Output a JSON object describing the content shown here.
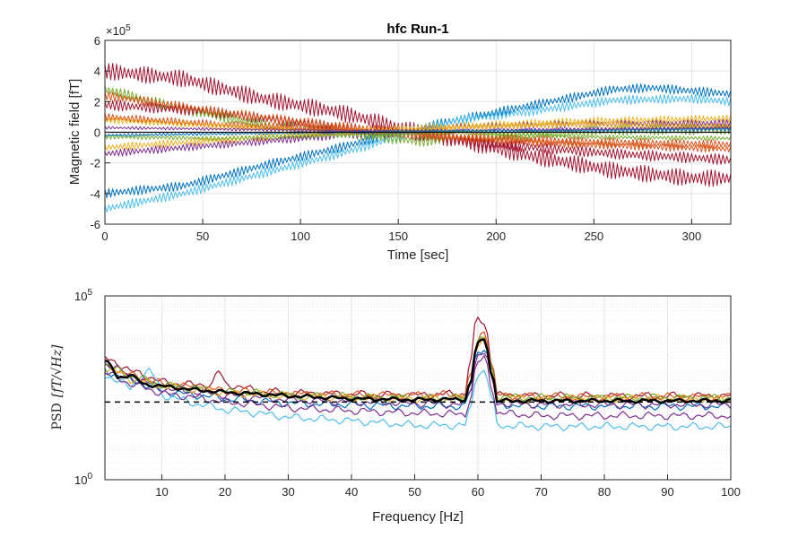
{
  "chart_data": [
    {
      "type": "line",
      "title": "hfc Run-1",
      "xlabel": "Time [sec]",
      "ylabel": "Magnetic field [fT]",
      "y_exponent_label": "×10",
      "y_exponent_power": "5",
      "xlim": [
        0,
        320
      ],
      "ylim": [
        -6,
        6
      ],
      "x_ticks": [
        "0",
        "50",
        "100",
        "150",
        "200",
        "250",
        "300"
      ],
      "y_ticks": [
        "-6",
        "-4",
        "-2",
        "0",
        "2",
        "4",
        "6"
      ],
      "grid": true,
      "series_colors": [
        "#a2142f",
        "#0072bd",
        "#4dbeee",
        "#77ac30",
        "#d95319",
        "#edb120",
        "#7e2f8e"
      ],
      "series": [
        {
          "color": "#a2142f",
          "x": [
            0,
            40,
            80,
            120,
            150,
            180,
            220,
            260,
            300,
            320
          ],
          "values": [
            4.0,
            3.5,
            2.2,
            1.3,
            0.3,
            -0.5,
            -1.6,
            -2.5,
            -3.0,
            -3.0
          ],
          "amplitude": 0.55
        },
        {
          "color": "#0072bd",
          "x": [
            0,
            40,
            80,
            120,
            150,
            180,
            220,
            260,
            280,
            300,
            320
          ],
          "values": [
            -4.0,
            -3.5,
            -2.2,
            -1.0,
            0.0,
            0.8,
            1.8,
            2.8,
            2.9,
            2.7,
            2.5
          ],
          "amplitude": 0.3
        },
        {
          "color": "#4dbeee",
          "x": [
            0,
            40,
            80,
            120,
            150,
            180,
            220,
            260,
            300,
            320
          ],
          "values": [
            -5.0,
            -4.0,
            -2.7,
            -1.4,
            -0.3,
            0.8,
            1.4,
            2.1,
            2.2,
            2.0
          ],
          "amplitude": 0.3
        },
        {
          "color": "#77ac30",
          "x": [
            0,
            40,
            80,
            120,
            160,
            200,
            250,
            320
          ],
          "values": [
            2.8,
            1.5,
            0.5,
            0.0,
            -0.6,
            -0.3,
            0.1,
            0.2
          ],
          "amplitude": 0.35
        },
        {
          "color": "#a2142f",
          "x": [
            0,
            50,
            100,
            160,
            200,
            260,
            320
          ],
          "values": [
            1.8,
            1.4,
            0.6,
            -0.2,
            -0.8,
            -1.4,
            -1.8
          ],
          "amplitude": 0.35
        },
        {
          "color": "#d95319",
          "x": [
            0,
            60,
            120,
            180,
            240,
            320
          ],
          "values": [
            2.4,
            1.3,
            0.4,
            -0.3,
            -0.6,
            -0.8
          ],
          "amplitude": 0.3
        },
        {
          "color": "#d95319",
          "x": [
            0,
            60,
            120,
            180,
            240,
            320
          ],
          "values": [
            1.0,
            0.5,
            0.2,
            -0.4,
            -0.8,
            -1.1
          ],
          "amplitude": 0.25
        },
        {
          "color": "#edb120",
          "x": [
            0,
            60,
            120,
            180,
            240,
            320
          ],
          "values": [
            -1.0,
            -0.5,
            0.0,
            0.4,
            0.7,
            0.9
          ],
          "amplitude": 0.25
        },
        {
          "color": "#7e2f8e",
          "x": [
            0,
            60,
            120,
            180,
            240,
            320
          ],
          "values": [
            -1.4,
            -0.8,
            -0.2,
            0.3,
            0.5,
            0.6
          ],
          "amplitude": 0.25
        },
        {
          "color": "#edb120",
          "x": [
            0,
            60,
            120,
            180,
            240,
            320
          ],
          "values": [
            0.8,
            0.4,
            0.0,
            0.3,
            0.5,
            0.4
          ],
          "amplitude": 0.2
        },
        {
          "color": "#77ac30",
          "x": [
            0,
            60,
            120,
            180,
            240,
            320
          ],
          "values": [
            -0.3,
            -0.4,
            -0.2,
            0.0,
            -0.3,
            -0.4
          ],
          "amplitude": 0.15
        },
        {
          "color": "#7e2f8e",
          "x": [
            0,
            60,
            120,
            180,
            240,
            320
          ],
          "values": [
            0.3,
            0.2,
            0.1,
            0.1,
            0.2,
            0.3
          ],
          "amplitude": 0.1
        },
        {
          "color": "#0072bd",
          "x": [
            0,
            60,
            120,
            180,
            240,
            320
          ],
          "values": [
            -0.2,
            -0.1,
            0.0,
            0.1,
            0.1,
            0.2
          ],
          "amplitude": 0.1
        },
        {
          "color": "#000000",
          "x": [
            0,
            320
          ],
          "values": [
            0.0,
            0.0
          ],
          "amplitude": 0.0
        }
      ]
    },
    {
      "type": "line",
      "xlabel": "Frequency [Hz]",
      "ylabel_prefix": "PSD",
      "ylabel_unit": "[fT/√Hz]",
      "xlim": [
        1,
        100
      ],
      "y_scale": "log",
      "ylim": [
        1,
        100000
      ],
      "x_ticks": [
        "10",
        "20",
        "30",
        "40",
        "50",
        "60",
        "70",
        "80",
        "90",
        "100"
      ],
      "y_ticks": [
        "10",
        "10"
      ],
      "y_tick_powers": [
        "0",
        "5"
      ],
      "grid": true,
      "reference_line": {
        "value": 130,
        "style": "dashed",
        "color": "#000000"
      },
      "series": [
        {
          "color": "#a2142f",
          "x": [
            1,
            5,
            10,
            15,
            18,
            19,
            20,
            25,
            30,
            40,
            50,
            58,
            59,
            60,
            61,
            62,
            63,
            70,
            80,
            90,
            100
          ],
          "values": [
            2000,
            900,
            450,
            380,
            400,
            900,
            400,
            260,
            230,
            210,
            200,
            220,
            2000,
            25000,
            17000,
            2000,
            200,
            190,
            190,
            190,
            190
          ]
        },
        {
          "color": "#d95319",
          "x": [
            1,
            5,
            10,
            20,
            30,
            40,
            50,
            58,
            59,
            60,
            61,
            62,
            63,
            70,
            80,
            90,
            100
          ],
          "values": [
            1200,
            700,
            400,
            260,
            220,
            200,
            200,
            210,
            700,
            6000,
            12000,
            1500,
            200,
            180,
            180,
            180,
            180
          ]
        },
        {
          "color": "#0072bd",
          "x": [
            1,
            5,
            10,
            20,
            30,
            40,
            50,
            58,
            59,
            60,
            61,
            62,
            63,
            70,
            80,
            90,
            100
          ],
          "values": [
            900,
            500,
            250,
            160,
            120,
            110,
            100,
            100,
            300,
            3000,
            4000,
            800,
            110,
            100,
            100,
            100,
            100
          ]
        },
        {
          "color": "#4dbeee",
          "x": [
            1,
            5,
            8,
            10,
            15,
            20,
            30,
            40,
            50,
            58,
            59,
            60,
            61,
            62,
            63,
            70,
            80,
            90,
            100
          ],
          "values": [
            700,
            300,
            900,
            200,
            120,
            80,
            50,
            40,
            30,
            30,
            100,
            800,
            900,
            200,
            30,
            28,
            28,
            28,
            28
          ]
        },
        {
          "color": "#7e2f8e",
          "x": [
            1,
            5,
            10,
            20,
            30,
            40,
            50,
            58,
            59,
            60,
            61,
            62,
            63,
            70,
            80,
            90,
            100
          ],
          "values": [
            1500,
            600,
            300,
            200,
            150,
            130,
            120,
            110,
            350,
            2500,
            3000,
            600,
            120,
            110,
            110,
            110,
            110
          ]
        },
        {
          "color": "#edb120",
          "x": [
            1,
            5,
            10,
            20,
            30,
            40,
            50,
            58,
            59,
            60,
            61,
            62,
            63,
            70,
            80,
            90,
            100
          ],
          "values": [
            1100,
            550,
            350,
            230,
            190,
            170,
            160,
            160,
            500,
            5000,
            6000,
            1000,
            170,
            160,
            160,
            160,
            160
          ]
        },
        {
          "color": "#77ac30",
          "x": [
            1,
            5,
            10,
            20,
            30,
            40,
            50,
            58,
            59,
            60,
            61,
            62,
            63,
            70,
            80,
            90,
            100
          ],
          "values": [
            1300,
            650,
            380,
            250,
            200,
            180,
            170,
            170,
            600,
            5500,
            7000,
            1200,
            180,
            170,
            170,
            170,
            170
          ]
        },
        {
          "color": "#7e2f8e",
          "x": [
            1,
            5,
            10,
            20,
            30,
            40,
            50,
            58,
            59,
            60,
            61,
            62,
            63,
            70,
            80,
            90,
            100
          ],
          "values": [
            800,
            400,
            220,
            130,
            90,
            75,
            65,
            60,
            200,
            1500,
            2000,
            400,
            65,
            55,
            55,
            55,
            55
          ]
        },
        {
          "color": "#000000",
          "x": [
            1,
            3,
            5,
            7,
            10,
            15,
            20,
            30,
            40,
            50,
            58,
            59,
            60,
            61,
            62,
            63,
            70,
            80,
            90,
            100
          ],
          "values": [
            1700,
            600,
            700,
            400,
            350,
            280,
            240,
            190,
            160,
            150,
            155,
            500,
            5000,
            6500,
            900,
            140,
            140,
            140,
            140,
            140
          ],
          "width": 2.5
        }
      ]
    }
  ]
}
